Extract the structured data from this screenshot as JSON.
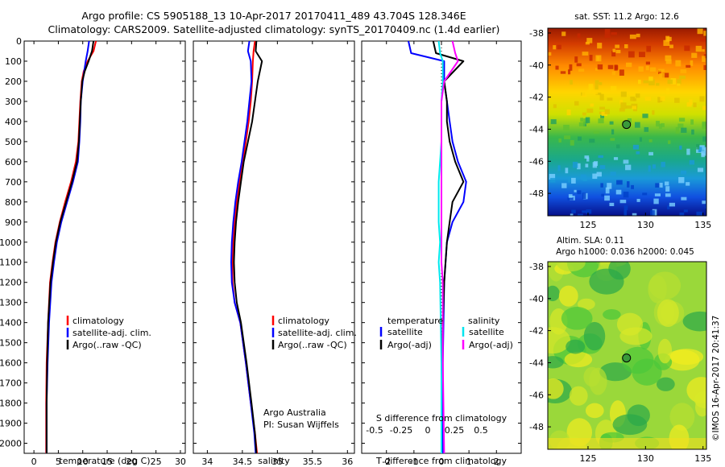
{
  "title_line1": "Argo profile: CS 5905188_13 10-Apr-2017 20170411_489 43.704S 128.346E",
  "title_line2": "Climatology: CARS2009. Satellite-adjusted climatology: synTS_20170409.nc (1.4d earlier)",
  "credit": "©IMOS 16-Apr-2017 20:41:37",
  "colors": {
    "climatology": "#ff0000",
    "satellite": "#0000ff",
    "argo": "#000000",
    "sal_satellite": "#00e5ee",
    "sal_argo": "#ff00ff"
  },
  "chart_data": [
    {
      "type": "line",
      "xlabel": "temperature (deg C)",
      "xlim": [
        -2,
        31
      ],
      "ylim": [
        0,
        2050
      ],
      "y_inverted": true,
      "xticks": [
        0,
        5,
        10,
        15,
        20,
        25,
        30
      ],
      "yticks": [
        0,
        100,
        200,
        300,
        400,
        500,
        600,
        700,
        800,
        900,
        1000,
        1100,
        1200,
        1300,
        1400,
        1500,
        1600,
        1700,
        1800,
        1900,
        2000
      ],
      "legend": [
        "climatology",
        "satellite-adj. clim.",
        "Argo(..raw -QC)"
      ],
      "legend_position": "lower-center",
      "series": [
        {
          "name": "climatology",
          "color": "#ff0000",
          "x": [
            12.7,
            12.2,
            11.0,
            10.2,
            9.8,
            9.5,
            9.3,
            9.1,
            8.6,
            7.6,
            6.4,
            5.3,
            4.4,
            3.8,
            3.3,
            2.9,
            2.6,
            2.5,
            2.5
          ],
          "y": [
            0,
            50,
            100,
            150,
            200,
            300,
            400,
            500,
            600,
            700,
            800,
            900,
            1000,
            1100,
            1200,
            1400,
            1600,
            1800,
            2050
          ]
        },
        {
          "name": "satellite-adj. clim.",
          "color": "#0000ff",
          "x": [
            11.3,
            11.0,
            10.6,
            10.3,
            10.0,
            9.6,
            9.5,
            9.3,
            9.0,
            8.0,
            6.8,
            5.6,
            4.7,
            4.1,
            3.6,
            3.1,
            2.8,
            2.6,
            2.6
          ],
          "y": [
            0,
            50,
            100,
            150,
            200,
            300,
            400,
            500,
            600,
            700,
            800,
            900,
            1000,
            1100,
            1200,
            1400,
            1600,
            1800,
            2050
          ]
        },
        {
          "name": "Argo(..raw -QC)",
          "color": "#000000",
          "x": [
            12.2,
            11.9,
            11.2,
            10.4,
            9.9,
            9.6,
            9.4,
            9.2,
            8.8,
            7.8,
            6.6,
            5.4,
            4.5,
            3.9,
            3.4,
            2.9,
            2.7,
            2.6,
            2.6
          ],
          "y": [
            0,
            50,
            100,
            150,
            200,
            300,
            400,
            500,
            600,
            700,
            800,
            900,
            1000,
            1100,
            1200,
            1400,
            1600,
            1800,
            2050
          ]
        }
      ]
    },
    {
      "type": "line",
      "xlabel": "salinity",
      "xlim": [
        33.8,
        36.1
      ],
      "ylim": [
        0,
        2050
      ],
      "y_inverted": true,
      "xticks": [
        34,
        34.5,
        35,
        35.5,
        36
      ],
      "xtick_labels": [
        "34",
        "34.5",
        "35",
        "35.5",
        "36"
      ],
      "legend": [
        "climatology",
        "satellite-adj. clim.",
        "Argo(..raw -QC)"
      ],
      "legend_position": "lower-right",
      "annotation": [
        "Argo Australia",
        "PI: Susan Wijffels"
      ],
      "series": [
        {
          "name": "climatology",
          "color": "#ff0000",
          "x": [
            34.68,
            34.66,
            34.65,
            34.64,
            34.62,
            34.59,
            34.55,
            34.51,
            34.46,
            34.42,
            34.39,
            34.37,
            34.36,
            34.36,
            34.39,
            34.47,
            34.55,
            34.62,
            34.68,
            34.71
          ],
          "y": [
            0,
            50,
            100,
            200,
            300,
            400,
            500,
            600,
            700,
            800,
            900,
            1000,
            1100,
            1200,
            1300,
            1400,
            1600,
            1800,
            1950,
            2050
          ]
        },
        {
          "name": "satellite-adj. clim.",
          "color": "#0000ff",
          "x": [
            34.6,
            34.58,
            34.62,
            34.63,
            34.6,
            34.57,
            34.53,
            34.49,
            34.44,
            34.4,
            34.37,
            34.35,
            34.34,
            34.35,
            34.39,
            34.47,
            34.55,
            34.62,
            34.67,
            34.69
          ],
          "y": [
            0,
            50,
            100,
            200,
            300,
            400,
            500,
            600,
            700,
            800,
            900,
            1000,
            1100,
            1200,
            1300,
            1400,
            1600,
            1800,
            1950,
            2050
          ]
        },
        {
          "name": "Argo(..raw -QC)",
          "color": "#000000",
          "x": [
            34.7,
            34.69,
            34.78,
            34.72,
            34.68,
            34.64,
            34.58,
            34.52,
            34.48,
            34.44,
            34.41,
            34.39,
            34.38,
            34.39,
            34.42,
            34.48,
            34.56,
            34.63,
            34.68,
            34.7
          ],
          "y": [
            0,
            50,
            100,
            200,
            300,
            400,
            500,
            600,
            700,
            800,
            900,
            1000,
            1100,
            1200,
            1300,
            1400,
            1600,
            1800,
            1950,
            2050
          ]
        }
      ]
    },
    {
      "type": "line",
      "xlabel": "T difference from climatology",
      "xlabel_top": "S difference from climatology",
      "xlim": [
        -2.9,
        2.9
      ],
      "ylim": [
        0,
        2050
      ],
      "y_inverted": true,
      "xticks": [
        -2,
        -1,
        0,
        1,
        2
      ],
      "xticks_top_labels": [
        "-0.5",
        "-0.25",
        "0",
        "0.25",
        "0.5"
      ],
      "legend_temperature": {
        "heading": "temperature",
        "items": [
          "satellite",
          "Argo(-adj)"
        ]
      },
      "legend_salinity": {
        "heading": "salinity",
        "items": [
          "satellite",
          "Argo(-adj)"
        ]
      },
      "legend_position": "lower-center",
      "series": [
        {
          "name": "satellite",
          "color": "#0000ff",
          "x": [
            -1.2,
            -1.1,
            0.1,
            0.1,
            0.2,
            0.3,
            0.4,
            0.6,
            0.9,
            0.8,
            0.4,
            0.2,
            0.1,
            0.05,
            0.05
          ],
          "y": [
            0,
            60,
            100,
            200,
            300,
            400,
            500,
            600,
            700,
            800,
            900,
            1000,
            1200,
            1600,
            2050
          ]
        },
        {
          "name": "Argo(-adj)",
          "color": "#000000",
          "x": [
            -0.3,
            -0.2,
            0.8,
            0.1,
            0.2,
            0.2,
            0.3,
            0.5,
            0.8,
            0.4,
            0.3,
            0.2,
            0.1,
            0.0,
            0.0
          ],
          "y": [
            0,
            60,
            100,
            200,
            300,
            400,
            500,
            600,
            700,
            800,
            900,
            1000,
            1200,
            1600,
            2050
          ]
        },
        {
          "name": "satellite",
          "color": "#00e5ee",
          "x": [
            -0.1,
            -0.05,
            0.05,
            0.05,
            0.0,
            0.0,
            0.0,
            -0.05,
            -0.1,
            -0.1,
            -0.1,
            -0.05,
            -0.1,
            -0.05,
            0.0,
            0.0
          ],
          "y": [
            0,
            60,
            100,
            200,
            300,
            400,
            500,
            600,
            700,
            800,
            900,
            1000,
            1100,
            1200,
            1600,
            2050
          ]
        },
        {
          "name": "Argo(-adj)",
          "color": "#ff00ff",
          "x": [
            0.4,
            0.5,
            0.6,
            0.1,
            0.0,
            0.0,
            0.0,
            0.0,
            0.0,
            0.0,
            0.0,
            0.0,
            0.0,
            0.05,
            0.05,
            0.1
          ],
          "y": [
            0,
            60,
            100,
            200,
            300,
            400,
            500,
            600,
            700,
            800,
            900,
            1000,
            1100,
            1200,
            1600,
            2050
          ]
        }
      ]
    },
    {
      "type": "heatmap",
      "title": "sat. SST: 11.2  Argo: 12.6",
      "xlim": [
        121.5,
        135.3
      ],
      "ylim": [
        -49.4,
        -37.7
      ],
      "xticks": [
        125,
        130,
        135
      ],
      "yticks": [
        -38,
        -40,
        -42,
        -44,
        -46,
        -48
      ],
      "marker": {
        "lon": 128.346,
        "lat": -43.704
      }
    },
    {
      "type": "heatmap",
      "title": "Altim. SLA: 0.11",
      "subtitle": "Argo h1000: 0.036  h2000: 0.045",
      "xlim": [
        121.5,
        135.3
      ],
      "ylim": [
        -49.4,
        -37.7
      ],
      "xticks": [
        125,
        130,
        135
      ],
      "yticks": [
        -38,
        -40,
        -42,
        -44,
        -46,
        -48
      ],
      "marker": {
        "lon": 128.346,
        "lat": -43.704
      }
    }
  ]
}
